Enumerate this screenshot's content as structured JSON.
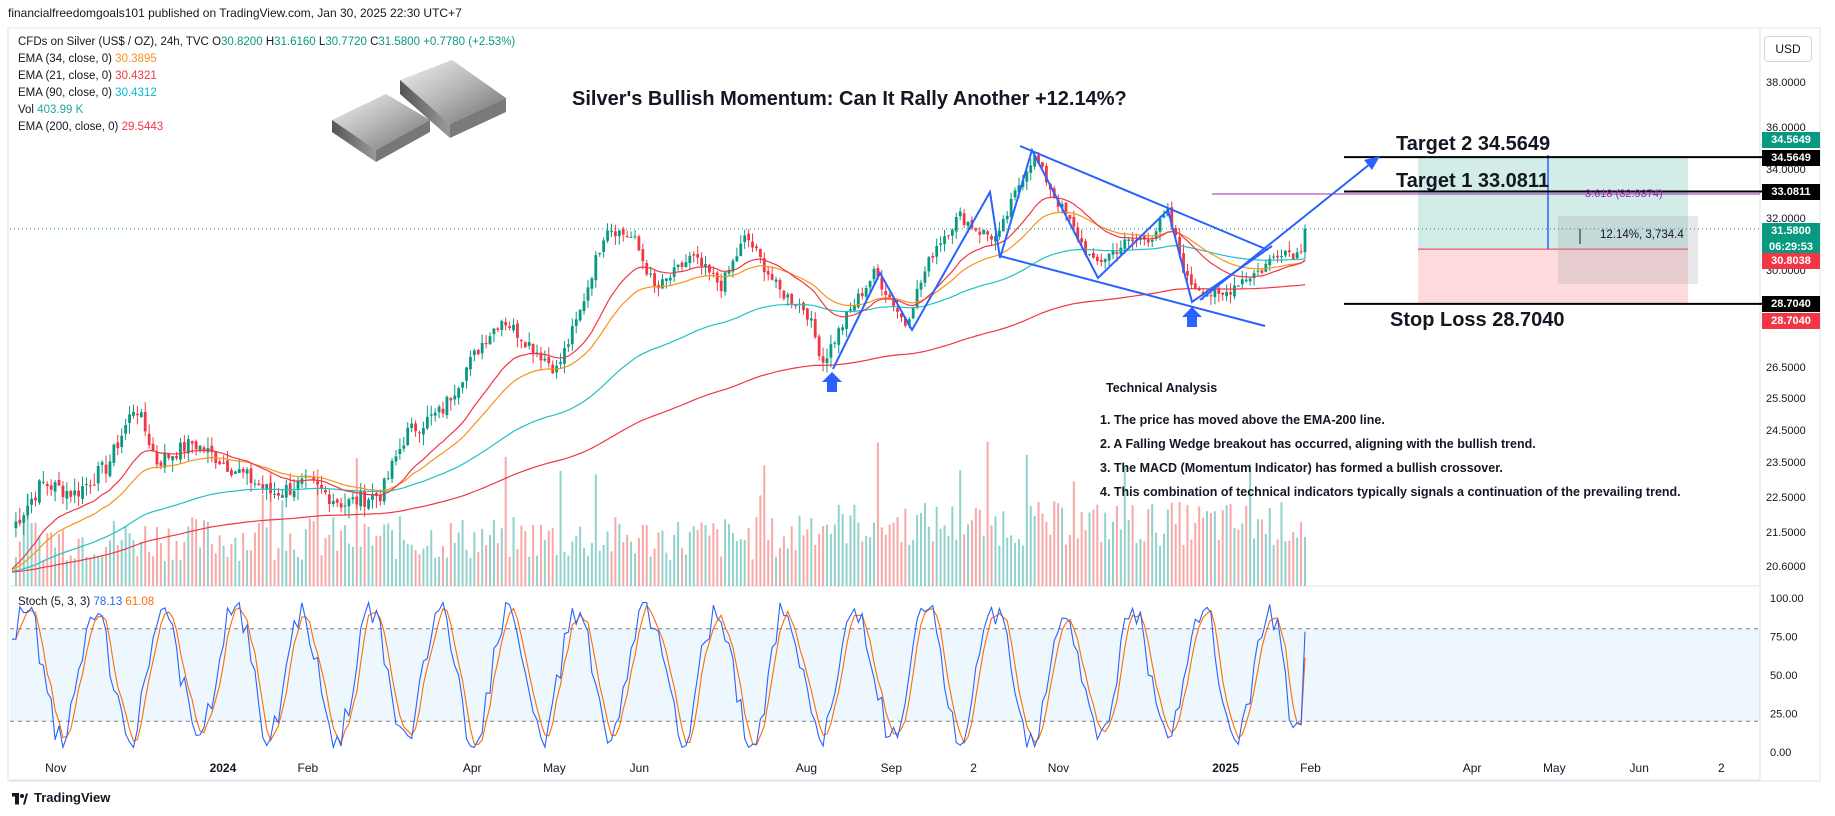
{
  "header": {
    "publish_line": "financialfreedomgoals101 published on TradingView.com, Jan 30, 2025 22:30 UTC+7",
    "currency": "USD"
  },
  "legend": {
    "symbol": "CFDs on Silver (US$ / OZ), 24h, TVC",
    "o_label": "O",
    "o_value": "30.8200",
    "h_label": "H",
    "h_value": "31.6160",
    "l_label": "L",
    "l_value": "30.7720",
    "c_label": "C",
    "c_value": "31.5800",
    "change": "+0.7780 (+2.53%)",
    "ema34_label": "EMA (34, close, 0)",
    "ema34_value": "30.3895",
    "ema21_label": "EMA (21, close, 0)",
    "ema21_value": "30.4321",
    "ema90_label": "EMA (90, close, 0)",
    "ema90_value": "30.4312",
    "vol_label": "Vol",
    "vol_value": "403.99 K",
    "ema200_label": "EMA (200, close, 0)",
    "ema200_value": "29.5443"
  },
  "annotations": {
    "title": "Silver's Bullish Momentum: Can It Rally Another +12.14%?",
    "target2": "Target 2  34.5649",
    "target1": "Target 1  33.0811",
    "stop_loss": "Stop Loss 28.7040",
    "fib_label": "3.618 (32.9374)",
    "measure_label": "12.14%, 3,734.4",
    "ta_title": "Technical Analysis",
    "ta_items": [
      "1.  The price has moved above the EMA-200 line.",
      "2.   A Falling Wedge breakout has occurred, aligning with the bullish trend.",
      "3. The MACD (Momentum Indicator) has formed a bullish crossover.",
      "4. This combination of technical indicators typically signals a continuation of the prevailing trend."
    ]
  },
  "price_axis": {
    "ticks": [
      "38.0000",
      "36.0000",
      "34.0000",
      "32.0000",
      "30.0000",
      "26.5000",
      "25.5000",
      "24.5000",
      "23.5000",
      "22.5000",
      "21.5000",
      "20.6000"
    ],
    "badges": [
      {
        "text": "34.5649",
        "color": "#089981"
      },
      {
        "text": "34.5649",
        "color": "#000000"
      },
      {
        "text": "33.0811",
        "color": "#000000"
      },
      {
        "text": "31.5800",
        "color": "#089981"
      },
      {
        "text": "06:29:53",
        "color": "#089981"
      },
      {
        "text": "30.8038",
        "color": "#f23645"
      },
      {
        "text": "28.7040",
        "color": "#000000"
      },
      {
        "text": "28.7040",
        "color": "#f23645"
      }
    ]
  },
  "time_axis": [
    "Nov",
    "2024",
    "Feb",
    "Apr",
    "May",
    "Jun",
    "Aug",
    "Sep",
    "2",
    "Nov",
    "2025",
    "Feb",
    "Apr",
    "May",
    "Jun",
    "2"
  ],
  "stoch": {
    "label": "Stoch (5, 3, 3)",
    "k_value": "78.13",
    "d_value": "61.08",
    "ticks": [
      "100.00",
      "75.00",
      "50.00",
      "25.00",
      "0.00"
    ]
  },
  "brand": "TradingView",
  "chart_data": [
    {
      "type": "candlestick",
      "title": "Silver's Bullish Momentum: Can It Rally Another +12.14%?",
      "ylim": [
        20.0,
        39.0
      ],
      "last_close": 31.58,
      "x_start": "2023-10-16",
      "x_step_days": 1,
      "close_series": [
        {
          "x": "2023-10-16",
          "y": 21.6
        },
        {
          "x": "2023-10-27",
          "y": 22.9
        },
        {
          "x": "2023-11-08",
          "y": 22.6
        },
        {
          "x": "2023-11-20",
          "y": 23.4
        },
        {
          "x": "2023-11-30",
          "y": 25.3
        },
        {
          "x": "2023-12-08",
          "y": 23.5
        },
        {
          "x": "2023-12-21",
          "y": 24.1
        },
        {
          "x": "2024-01-05",
          "y": 23.3
        },
        {
          "x": "2024-01-19",
          "y": 22.6
        },
        {
          "x": "2024-02-01",
          "y": 22.9
        },
        {
          "x": "2024-02-14",
          "y": 22.3
        },
        {
          "x": "2024-02-28",
          "y": 22.6
        },
        {
          "x": "2024-03-08",
          "y": 24.4
        },
        {
          "x": "2024-03-21",
          "y": 25.1
        },
        {
          "x": "2024-04-05",
          "y": 27.4
        },
        {
          "x": "2024-04-12",
          "y": 28.2
        },
        {
          "x": "2024-04-23",
          "y": 27.2
        },
        {
          "x": "2024-05-02",
          "y": 26.4
        },
        {
          "x": "2024-05-10",
          "y": 28.3
        },
        {
          "x": "2024-05-20",
          "y": 31.7
        },
        {
          "x": "2024-05-30",
          "y": 31.2
        },
        {
          "x": "2024-06-07",
          "y": 29.2
        },
        {
          "x": "2024-06-20",
          "y": 30.5
        },
        {
          "x": "2024-07-01",
          "y": 29.4
        },
        {
          "x": "2024-07-10",
          "y": 31.3
        },
        {
          "x": "2024-07-22",
          "y": 29.2
        },
        {
          "x": "2024-08-01",
          "y": 28.5
        },
        {
          "x": "2024-08-07",
          "y": 26.7
        },
        {
          "x": "2024-08-16",
          "y": 28.3
        },
        {
          "x": "2024-08-26",
          "y": 29.9
        },
        {
          "x": "2024-09-06",
          "y": 28.0
        },
        {
          "x": "2024-09-17",
          "y": 30.9
        },
        {
          "x": "2024-09-26",
          "y": 32.1
        },
        {
          "x": "2024-10-03",
          "y": 31.5
        },
        {
          "x": "2024-10-10",
          "y": 31.2
        },
        {
          "x": "2024-10-18",
          "y": 33.5
        },
        {
          "x": "2024-10-23",
          "y": 34.6
        },
        {
          "x": "2024-10-31",
          "y": 32.8
        },
        {
          "x": "2024-11-08",
          "y": 31.3
        },
        {
          "x": "2024-11-14",
          "y": 30.2
        },
        {
          "x": "2024-11-25",
          "y": 31.0
        },
        {
          "x": "2024-12-05",
          "y": 31.3
        },
        {
          "x": "2024-12-11",
          "y": 32.2
        },
        {
          "x": "2024-12-18",
          "y": 29.6
        },
        {
          "x": "2024-12-30",
          "y": 28.9
        },
        {
          "x": "2025-01-06",
          "y": 29.6
        },
        {
          "x": "2025-01-14",
          "y": 30.0
        },
        {
          "x": "2025-01-21",
          "y": 30.8
        },
        {
          "x": "2025-01-28",
          "y": 30.6
        },
        {
          "x": "2025-01-30",
          "y": 31.58
        }
      ],
      "levels": {
        "target2": 34.5649,
        "target1": 33.0811,
        "entry": 30.8038,
        "stop_loss": 28.704,
        "fib_3_618": 32.9374
      },
      "indicators": [
        "EMA 21",
        "EMA 34",
        "EMA 90",
        "EMA 200",
        "Volume"
      ]
    },
    {
      "type": "line",
      "title": "Stoch (5, 3, 3)",
      "ylim": [
        0,
        100
      ],
      "series": [
        {
          "name": "%K",
          "last": 78.13
        },
        {
          "name": "%D",
          "last": 61.08
        }
      ],
      "bands": [
        20,
        80
      ]
    }
  ]
}
